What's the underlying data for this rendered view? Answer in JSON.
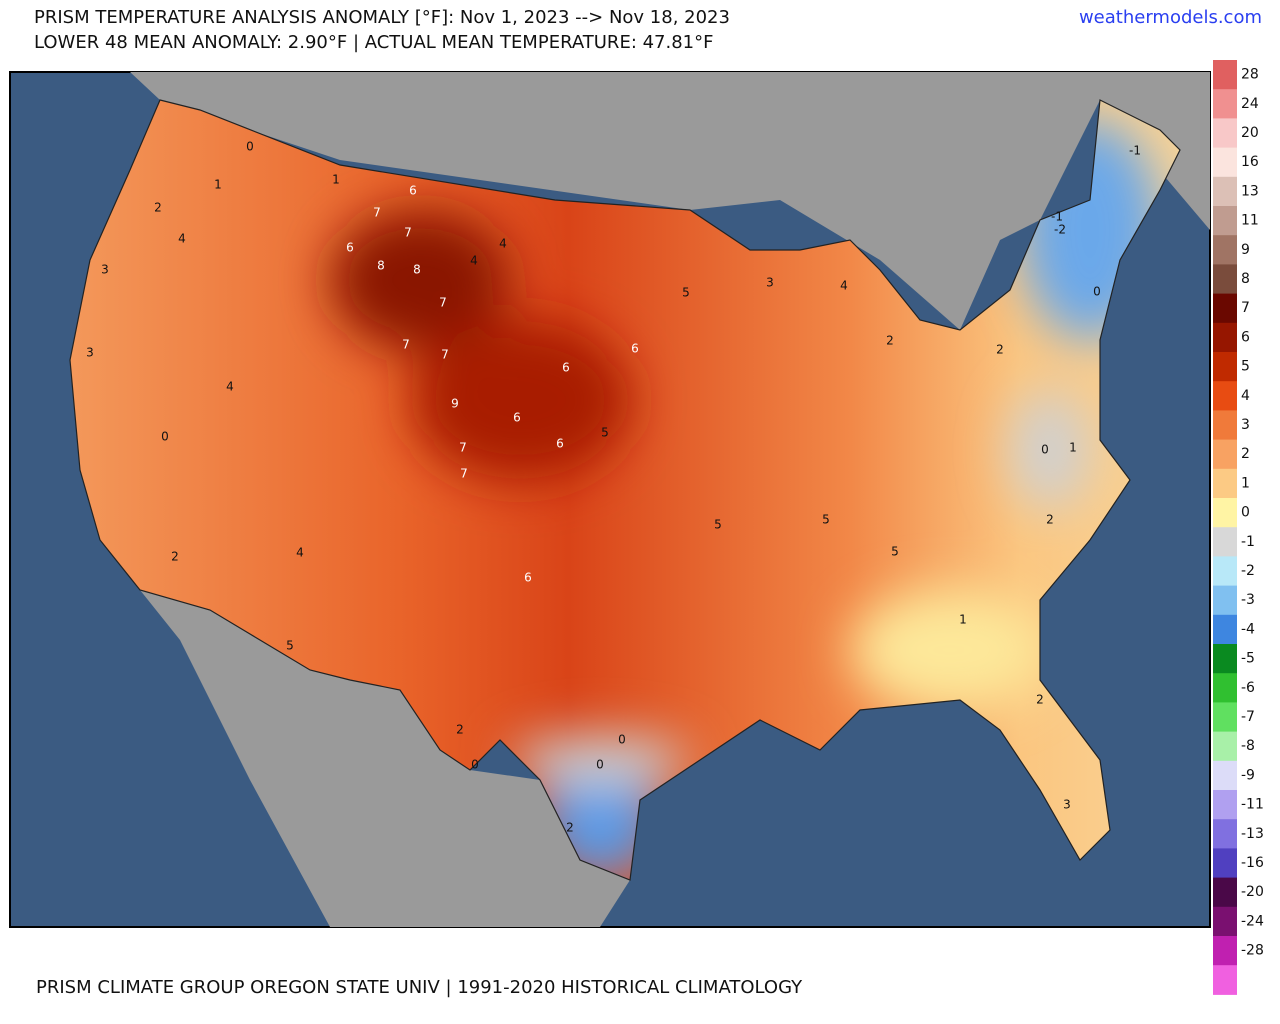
{
  "header": {
    "title": "PRISM TEMPERATURE ANALYSIS ANOMALY [°F]: Nov 1, 2023 --> Nov 18, 2023",
    "subtitle": "LOWER 48 MEAN ANOMALY: 2.90°F | ACTUAL MEAN TEMPERATURE: 47.81°F",
    "site": "weathermodels.com"
  },
  "colorbar": {
    "ticks": [
      28,
      24,
      20,
      16,
      13,
      11,
      9,
      8,
      7,
      6,
      5,
      4,
      3,
      2,
      1,
      0,
      -1,
      -2,
      -3,
      -4,
      -5,
      -6,
      -7,
      -8,
      -9,
      -11,
      -13,
      -16,
      -20,
      -24,
      -28
    ],
    "colors": [
      "#e06060",
      "#f09090",
      "#f8c8c8",
      "#fbe4de",
      "#dcc0b6",
      "#c09c90",
      "#a07464",
      "#7a4c3c",
      "#6a0800",
      "#961600",
      "#c02a00",
      "#e84c12",
      "#f07a3a",
      "#f8a262",
      "#fcca84",
      "#fff4a4",
      "#d8d8d8",
      "#b8e8f8",
      "#80c0f0",
      "#3e86e0",
      "#0a8a20",
      "#30c030",
      "#60e060",
      "#a8f0a8",
      "#dcdcf8",
      "#b0a0f0",
      "#8070e0",
      "#5040c0",
      "#4a0848",
      "#7a1070",
      "#c020b0",
      "#f060e0"
    ]
  },
  "map": {
    "labels": [
      0,
      1,
      2,
      4,
      1,
      6,
      7,
      7,
      6,
      8,
      8,
      4,
      4,
      7,
      7,
      7,
      9,
      7,
      7,
      6,
      6,
      6,
      6,
      5,
      5,
      3,
      4,
      2,
      2,
      -1,
      -2,
      -1,
      0,
      1,
      0,
      2,
      1,
      2,
      3,
      2,
      0,
      0,
      0,
      2,
      6,
      5,
      4,
      4,
      0,
      2,
      3,
      3,
      5,
      5,
      5
    ]
  },
  "footer": "PRISM CLIMATE GROUP OREGON STATE UNIV | 1991-2020 HISTORICAL CLIMATOLOGY"
}
